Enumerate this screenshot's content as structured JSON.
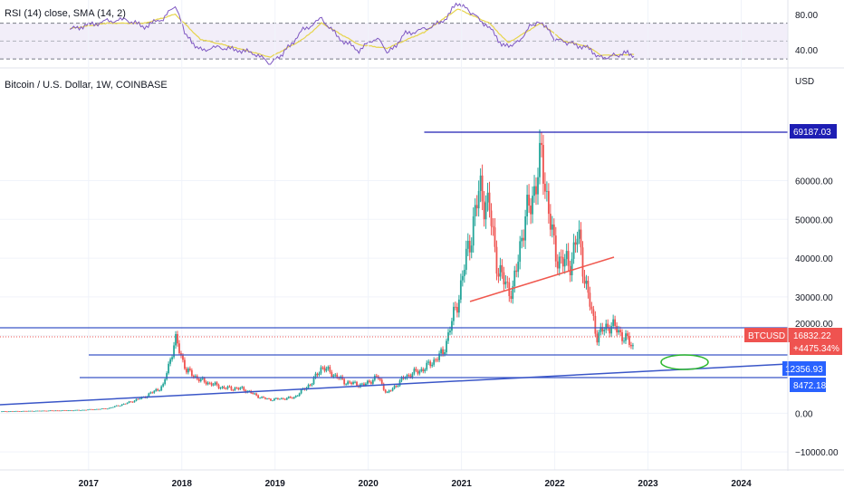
{
  "header": {
    "rsi_label": "RSI (14) close, SMA (14, 2)",
    "main_title": "Bitcoin / U.S. Dollar, 1W, COINBASE",
    "currency": "USD"
  },
  "colors": {
    "up": "#26a69a",
    "down": "#ef5350",
    "blue_line": "#3a56c8",
    "navy_line": "#1e1eb4",
    "red_line": "#f0584e",
    "rsi_line": "#7e57c2",
    "rsi_sma": "#e6d44c",
    "ellipse": "#2eb82e"
  },
  "chart_data": [
    {
      "type": "line",
      "name": "rsi-panel",
      "ylim": [
        23,
        96
      ],
      "y_ticks": [
        "80.00",
        "40.00"
      ],
      "y_tick_values": [
        80,
        40
      ],
      "band": [
        30,
        70
      ],
      "midline": 50,
      "rsi": [
        [
          2016.8,
          63
        ],
        [
          2017.0,
          68
        ],
        [
          2017.2,
          72
        ],
        [
          2017.4,
          74
        ],
        [
          2017.6,
          66
        ],
        [
          2017.8,
          76
        ],
        [
          2017.93,
          89
        ],
        [
          2018.05,
          55
        ],
        [
          2018.2,
          40
        ],
        [
          2018.4,
          43
        ],
        [
          2018.6,
          40
        ],
        [
          2018.8,
          36
        ],
        [
          2018.95,
          24
        ],
        [
          2019.1,
          38
        ],
        [
          2019.3,
          62
        ],
        [
          2019.5,
          75
        ],
        [
          2019.7,
          52
        ],
        [
          2019.9,
          40
        ],
        [
          2020.1,
          55
        ],
        [
          2020.2,
          35
        ],
        [
          2020.4,
          58
        ],
        [
          2020.6,
          63
        ],
        [
          2020.8,
          72
        ],
        [
          2020.96,
          93
        ],
        [
          2021.1,
          82
        ],
        [
          2021.3,
          65
        ],
        [
          2021.45,
          44
        ],
        [
          2021.6,
          48
        ],
        [
          2021.75,
          68
        ],
        [
          2021.85,
          73
        ],
        [
          2022.0,
          52
        ],
        [
          2022.15,
          48
        ],
        [
          2022.35,
          42
        ],
        [
          2022.5,
          31
        ],
        [
          2022.65,
          34
        ],
        [
          2022.8,
          37
        ],
        [
          2022.85,
          33
        ]
      ],
      "sma": [
        [
          2016.8,
          64
        ],
        [
          2017.2,
          70
        ],
        [
          2017.6,
          70
        ],
        [
          2017.93,
          80
        ],
        [
          2018.2,
          52
        ],
        [
          2018.6,
          42
        ],
        [
          2018.95,
          32
        ],
        [
          2019.3,
          52
        ],
        [
          2019.5,
          70
        ],
        [
          2019.9,
          46
        ],
        [
          2020.2,
          42
        ],
        [
          2020.6,
          60
        ],
        [
          2020.96,
          86
        ],
        [
          2021.3,
          70
        ],
        [
          2021.5,
          48
        ],
        [
          2021.85,
          70
        ],
        [
          2022.1,
          50
        ],
        [
          2022.35,
          44
        ],
        [
          2022.5,
          34
        ],
        [
          2022.85,
          35
        ]
      ]
    },
    {
      "type": "candlestick",
      "name": "btcusd-weekly",
      "x_ticks": [
        "2017",
        "2018",
        "2019",
        "2020",
        "2021",
        "2022",
        "2023",
        "2024"
      ],
      "y_ticks": [
        "60000.00",
        "50000.00",
        "40000.00",
        "30000.00",
        "20000.00",
        "0.00",
        "−10000.00"
      ],
      "y_tick_values": [
        60000,
        50000,
        40000,
        30000,
        20000,
        0,
        -10000
      ],
      "ylim": [
        -13000,
        83000
      ],
      "xlim": [
        2016.05,
        2024.5
      ],
      "anchors": [
        [
          2016.0,
          430
        ],
        [
          2016.9,
          780
        ],
        [
          2017.2,
          1200
        ],
        [
          2017.4,
          2500
        ],
        [
          2017.6,
          4200
        ],
        [
          2017.8,
          7000
        ],
        [
          2017.93,
          19000
        ],
        [
          2018.05,
          11000
        ],
        [
          2018.2,
          8500
        ],
        [
          2018.45,
          6500
        ],
        [
          2018.65,
          6300
        ],
        [
          2018.85,
          4000
        ],
        [
          2018.95,
          3500
        ],
        [
          2019.2,
          4000
        ],
        [
          2019.4,
          8000
        ],
        [
          2019.5,
          12000
        ],
        [
          2019.75,
          8000
        ],
        [
          2019.95,
          7200
        ],
        [
          2020.1,
          9500
        ],
        [
          2020.2,
          5000
        ],
        [
          2020.4,
          9500
        ],
        [
          2020.6,
          11500
        ],
        [
          2020.8,
          15500
        ],
        [
          2020.96,
          29000
        ],
        [
          2021.05,
          40000
        ],
        [
          2021.2,
          58000
        ],
        [
          2021.3,
          52000
        ],
        [
          2021.4,
          36000
        ],
        [
          2021.55,
          31000
        ],
        [
          2021.65,
          47000
        ],
        [
          2021.75,
          55000
        ],
        [
          2021.86,
          66000
        ],
        [
          2022.0,
          41000
        ],
        [
          2022.15,
          38000
        ],
        [
          2022.25,
          46000
        ],
        [
          2022.35,
          31000
        ],
        [
          2022.45,
          20000
        ],
        [
          2022.6,
          23000
        ],
        [
          2022.75,
          19500
        ],
        [
          2022.85,
          16800
        ]
      ],
      "levels": [
        {
          "name": "ath-line",
          "y": 69187.03,
          "x0": 2020.6,
          "x1": 2024.5
        },
        {
          "name": "resistance-line",
          "y": 19500,
          "x0": 2016.05,
          "x1": 2024.5
        },
        {
          "name": "support-line-upper",
          "y": 12356.93,
          "x0": 2016.05,
          "x1": 2024.5
        },
        {
          "name": "support-line-lower",
          "y": 8472.18,
          "x0": 2016.05,
          "x1": 2024.5
        }
      ],
      "price_labels": {
        "ath": "69187.03",
        "btc_name": "BTCUSD",
        "last_price": "16832.22",
        "change": "+4475.34%",
        "level_1": "12356.93",
        "level_2": "8472.18",
        "level_3": "20000.00"
      }
    }
  ]
}
